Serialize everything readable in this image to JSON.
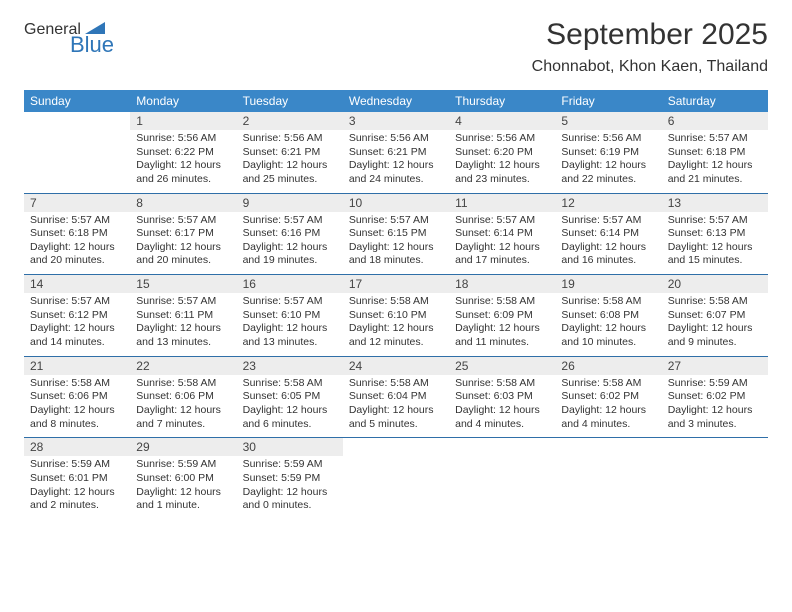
{
  "logo": {
    "line1": "General",
    "line2": "Blue"
  },
  "title": "September 2025",
  "location": "Chonnabot, Khon Kaen, Thailand",
  "colors": {
    "header_bg": "#3a87c8",
    "header_text": "#ffffff",
    "daynum_bg": "#ededed",
    "week_border": "#2f6fa8",
    "logo_gray": "#6a6a6a",
    "logo_blue": "#2f76b8",
    "text": "#333333",
    "background": "#ffffff"
  },
  "typography": {
    "title_fontsize": 30,
    "location_fontsize": 16,
    "dow_fontsize": 12,
    "daynum_fontsize": 12,
    "daytext_fontsize": 10.5
  },
  "days_of_week": [
    "Sunday",
    "Monday",
    "Tuesday",
    "Wednesday",
    "Thursday",
    "Friday",
    "Saturday"
  ],
  "weeks": [
    [
      {
        "num": "",
        "l1": "",
        "l2": "",
        "l3": "",
        "l4": ""
      },
      {
        "num": "1",
        "l1": "Sunrise: 5:56 AM",
        "l2": "Sunset: 6:22 PM",
        "l3": "Daylight: 12 hours",
        "l4": "and 26 minutes."
      },
      {
        "num": "2",
        "l1": "Sunrise: 5:56 AM",
        "l2": "Sunset: 6:21 PM",
        "l3": "Daylight: 12 hours",
        "l4": "and 25 minutes."
      },
      {
        "num": "3",
        "l1": "Sunrise: 5:56 AM",
        "l2": "Sunset: 6:21 PM",
        "l3": "Daylight: 12 hours",
        "l4": "and 24 minutes."
      },
      {
        "num": "4",
        "l1": "Sunrise: 5:56 AM",
        "l2": "Sunset: 6:20 PM",
        "l3": "Daylight: 12 hours",
        "l4": "and 23 minutes."
      },
      {
        "num": "5",
        "l1": "Sunrise: 5:56 AM",
        "l2": "Sunset: 6:19 PM",
        "l3": "Daylight: 12 hours",
        "l4": "and 22 minutes."
      },
      {
        "num": "6",
        "l1": "Sunrise: 5:57 AM",
        "l2": "Sunset: 6:18 PM",
        "l3": "Daylight: 12 hours",
        "l4": "and 21 minutes."
      }
    ],
    [
      {
        "num": "7",
        "l1": "Sunrise: 5:57 AM",
        "l2": "Sunset: 6:18 PM",
        "l3": "Daylight: 12 hours",
        "l4": "and 20 minutes."
      },
      {
        "num": "8",
        "l1": "Sunrise: 5:57 AM",
        "l2": "Sunset: 6:17 PM",
        "l3": "Daylight: 12 hours",
        "l4": "and 20 minutes."
      },
      {
        "num": "9",
        "l1": "Sunrise: 5:57 AM",
        "l2": "Sunset: 6:16 PM",
        "l3": "Daylight: 12 hours",
        "l4": "and 19 minutes."
      },
      {
        "num": "10",
        "l1": "Sunrise: 5:57 AM",
        "l2": "Sunset: 6:15 PM",
        "l3": "Daylight: 12 hours",
        "l4": "and 18 minutes."
      },
      {
        "num": "11",
        "l1": "Sunrise: 5:57 AM",
        "l2": "Sunset: 6:14 PM",
        "l3": "Daylight: 12 hours",
        "l4": "and 17 minutes."
      },
      {
        "num": "12",
        "l1": "Sunrise: 5:57 AM",
        "l2": "Sunset: 6:14 PM",
        "l3": "Daylight: 12 hours",
        "l4": "and 16 minutes."
      },
      {
        "num": "13",
        "l1": "Sunrise: 5:57 AM",
        "l2": "Sunset: 6:13 PM",
        "l3": "Daylight: 12 hours",
        "l4": "and 15 minutes."
      }
    ],
    [
      {
        "num": "14",
        "l1": "Sunrise: 5:57 AM",
        "l2": "Sunset: 6:12 PM",
        "l3": "Daylight: 12 hours",
        "l4": "and 14 minutes."
      },
      {
        "num": "15",
        "l1": "Sunrise: 5:57 AM",
        "l2": "Sunset: 6:11 PM",
        "l3": "Daylight: 12 hours",
        "l4": "and 13 minutes."
      },
      {
        "num": "16",
        "l1": "Sunrise: 5:57 AM",
        "l2": "Sunset: 6:10 PM",
        "l3": "Daylight: 12 hours",
        "l4": "and 13 minutes."
      },
      {
        "num": "17",
        "l1": "Sunrise: 5:58 AM",
        "l2": "Sunset: 6:10 PM",
        "l3": "Daylight: 12 hours",
        "l4": "and 12 minutes."
      },
      {
        "num": "18",
        "l1": "Sunrise: 5:58 AM",
        "l2": "Sunset: 6:09 PM",
        "l3": "Daylight: 12 hours",
        "l4": "and 11 minutes."
      },
      {
        "num": "19",
        "l1": "Sunrise: 5:58 AM",
        "l2": "Sunset: 6:08 PM",
        "l3": "Daylight: 12 hours",
        "l4": "and 10 minutes."
      },
      {
        "num": "20",
        "l1": "Sunrise: 5:58 AM",
        "l2": "Sunset: 6:07 PM",
        "l3": "Daylight: 12 hours",
        "l4": "and 9 minutes."
      }
    ],
    [
      {
        "num": "21",
        "l1": "Sunrise: 5:58 AM",
        "l2": "Sunset: 6:06 PM",
        "l3": "Daylight: 12 hours",
        "l4": "and 8 minutes."
      },
      {
        "num": "22",
        "l1": "Sunrise: 5:58 AM",
        "l2": "Sunset: 6:06 PM",
        "l3": "Daylight: 12 hours",
        "l4": "and 7 minutes."
      },
      {
        "num": "23",
        "l1": "Sunrise: 5:58 AM",
        "l2": "Sunset: 6:05 PM",
        "l3": "Daylight: 12 hours",
        "l4": "and 6 minutes."
      },
      {
        "num": "24",
        "l1": "Sunrise: 5:58 AM",
        "l2": "Sunset: 6:04 PM",
        "l3": "Daylight: 12 hours",
        "l4": "and 5 minutes."
      },
      {
        "num": "25",
        "l1": "Sunrise: 5:58 AM",
        "l2": "Sunset: 6:03 PM",
        "l3": "Daylight: 12 hours",
        "l4": "and 4 minutes."
      },
      {
        "num": "26",
        "l1": "Sunrise: 5:58 AM",
        "l2": "Sunset: 6:02 PM",
        "l3": "Daylight: 12 hours",
        "l4": "and 4 minutes."
      },
      {
        "num": "27",
        "l1": "Sunrise: 5:59 AM",
        "l2": "Sunset: 6:02 PM",
        "l3": "Daylight: 12 hours",
        "l4": "and 3 minutes."
      }
    ],
    [
      {
        "num": "28",
        "l1": "Sunrise: 5:59 AM",
        "l2": "Sunset: 6:01 PM",
        "l3": "Daylight: 12 hours",
        "l4": "and 2 minutes."
      },
      {
        "num": "29",
        "l1": "Sunrise: 5:59 AM",
        "l2": "Sunset: 6:00 PM",
        "l3": "Daylight: 12 hours",
        "l4": "and 1 minute."
      },
      {
        "num": "30",
        "l1": "Sunrise: 5:59 AM",
        "l2": "Sunset: 5:59 PM",
        "l3": "Daylight: 12 hours",
        "l4": "and 0 minutes."
      },
      {
        "num": "",
        "l1": "",
        "l2": "",
        "l3": "",
        "l4": ""
      },
      {
        "num": "",
        "l1": "",
        "l2": "",
        "l3": "",
        "l4": ""
      },
      {
        "num": "",
        "l1": "",
        "l2": "",
        "l3": "",
        "l4": ""
      },
      {
        "num": "",
        "l1": "",
        "l2": "",
        "l3": "",
        "l4": ""
      }
    ]
  ]
}
